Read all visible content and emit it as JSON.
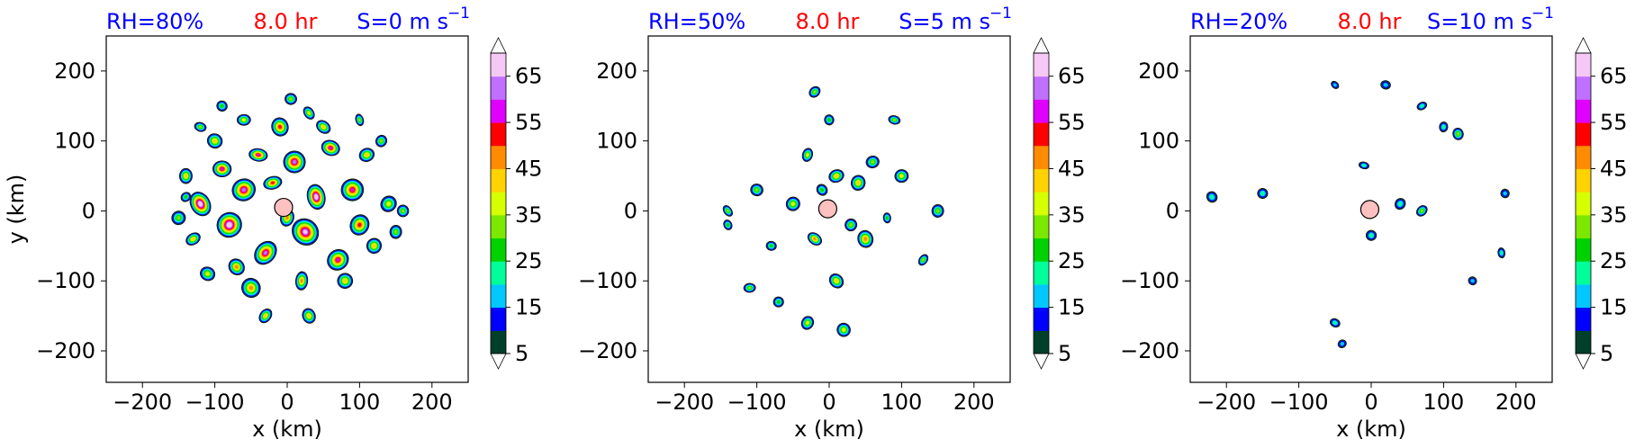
{
  "figure": {
    "colors": {
      "title_left": "#0000ff",
      "title_center": "#ff0000",
      "title_right": "#0000ff",
      "axis": "#000000",
      "eye_fill": "#ffc0c0"
    }
  },
  "chart_data": [
    {
      "type": "heatmap",
      "title_left": "RH=80%",
      "title_center": "8.0 hr",
      "title_right": "S=0 m s",
      "title_right_sup": "−1",
      "xlabel": "x (km)",
      "ylabel": "y (km)",
      "xlim": [
        -250,
        250
      ],
      "ylim": [
        -245,
        250
      ],
      "xticks": [
        -200,
        -100,
        0,
        100,
        200
      ],
      "yticks": [
        -200,
        -100,
        0,
        100,
        200
      ],
      "xtick_labels": [
        "−200",
        "−100",
        "0",
        "100",
        "200"
      ],
      "ytick_labels": [
        "−200",
        "−100",
        "0",
        "100",
        "200"
      ],
      "eye_center": [
        -5,
        5
      ],
      "cells": [
        [
          -120,
          10,
          14,
          70
        ],
        [
          -90,
          60,
          10,
          55
        ],
        [
          -80,
          -20,
          14,
          70
        ],
        [
          -60,
          30,
          12,
          60
        ],
        [
          -40,
          80,
          10,
          55
        ],
        [
          -30,
          -60,
          14,
          60
        ],
        [
          -10,
          120,
          10,
          50
        ],
        [
          10,
          70,
          12,
          60
        ],
        [
          25,
          -30,
          14,
          65
        ],
        [
          40,
          20,
          14,
          70
        ],
        [
          60,
          90,
          10,
          55
        ],
        [
          70,
          -70,
          12,
          55
        ],
        [
          90,
          30,
          12,
          55
        ],
        [
          100,
          -20,
          10,
          50
        ],
        [
          -130,
          -40,
          8,
          40
        ],
        [
          -140,
          50,
          8,
          40
        ],
        [
          -100,
          100,
          8,
          40
        ],
        [
          -50,
          -110,
          10,
          45
        ],
        [
          20,
          -100,
          10,
          45
        ],
        [
          50,
          120,
          8,
          40
        ],
        [
          110,
          80,
          8,
          40
        ],
        [
          120,
          -50,
          8,
          40
        ],
        [
          140,
          10,
          8,
          35
        ],
        [
          -20,
          40,
          10,
          50
        ],
        [
          0,
          -10,
          9,
          45
        ],
        [
          -70,
          -80,
          9,
          45
        ],
        [
          80,
          -100,
          8,
          40
        ],
        [
          -110,
          -90,
          7,
          35
        ],
        [
          30,
          140,
          7,
          35
        ],
        [
          -60,
          130,
          7,
          35
        ],
        [
          130,
          100,
          6,
          30
        ],
        [
          -150,
          -10,
          7,
          30
        ],
        [
          150,
          -30,
          6,
          30
        ],
        [
          -30,
          -150,
          8,
          40
        ],
        [
          30,
          -150,
          8,
          40
        ],
        [
          5,
          160,
          6,
          30
        ],
        [
          -90,
          150,
          5,
          25
        ],
        [
          100,
          130,
          6,
          30
        ],
        [
          -120,
          120,
          6,
          30
        ],
        [
          -140,
          20,
          5,
          25
        ],
        [
          160,
          0,
          6,
          30
        ]
      ]
    },
    {
      "type": "heatmap",
      "title_left": "RH=50%",
      "title_center": "8.0 hr",
      "title_right": "S=5 m s",
      "title_right_sup": "−1",
      "xlabel": "x (km)",
      "ylabel": "",
      "xlim": [
        -250,
        250
      ],
      "ylim": [
        -245,
        250
      ],
      "xticks": [
        -200,
        -100,
        0,
        100,
        200
      ],
      "yticks": [
        -200,
        -100,
        0,
        100,
        200
      ],
      "xtick_labels": [
        "−200",
        "−100",
        "0",
        "100",
        "200"
      ],
      "ytick_labels": [
        "−200",
        "−100",
        "0",
        "100",
        "200"
      ],
      "eye_center": [
        -2,
        3
      ],
      "cells": [
        [
          -20,
          -40,
          8,
          45
        ],
        [
          10,
          50,
          8,
          40
        ],
        [
          40,
          40,
          8,
          40
        ],
        [
          -50,
          10,
          7,
          35
        ],
        [
          50,
          -40,
          8,
          45
        ],
        [
          -30,
          80,
          7,
          35
        ],
        [
          10,
          -100,
          8,
          40
        ],
        [
          100,
          50,
          7,
          35
        ],
        [
          -100,
          30,
          6,
          30
        ],
        [
          -140,
          0,
          6,
          30
        ],
        [
          -110,
          -110,
          6,
          30
        ],
        [
          -30,
          -160,
          7,
          35
        ],
        [
          20,
          -170,
          7,
          35
        ],
        [
          150,
          0,
          6,
          30
        ],
        [
          130,
          -70,
          6,
          30
        ],
        [
          -140,
          -20,
          5,
          25
        ],
        [
          -80,
          -50,
          5,
          25
        ],
        [
          -70,
          -130,
          5,
          25
        ],
        [
          60,
          70,
          6,
          30
        ],
        [
          90,
          130,
          6,
          30
        ],
        [
          -20,
          170,
          6,
          30
        ],
        [
          0,
          130,
          5,
          25
        ],
        [
          30,
          -20,
          6,
          30
        ],
        [
          -10,
          30,
          5,
          25
        ],
        [
          80,
          -10,
          5,
          25
        ]
      ]
    },
    {
      "type": "heatmap",
      "title_left": "RH=20%",
      "title_center": "8.0 hr",
      "title_right": "S=10 m s",
      "title_right_sup": "−1",
      "xlabel": "x (km)",
      "ylabel": "",
      "xlim": [
        -250,
        250
      ],
      "ylim": [
        -245,
        250
      ],
      "xticks": [
        -200,
        -100,
        0,
        100,
        200
      ],
      "yticks": [
        -200,
        -100,
        0,
        100,
        200
      ],
      "xtick_labels": [
        "−200",
        "−100",
        "0",
        "100",
        "200"
      ],
      "ytick_labels": [
        "−200",
        "−100",
        "0",
        "100",
        "200"
      ],
      "eye_center": [
        -2,
        2
      ],
      "cells": [
        [
          -10,
          65,
          5,
          22
        ],
        [
          70,
          0,
          6,
          30
        ],
        [
          120,
          110,
          6,
          30
        ],
        [
          -150,
          25,
          5,
          22
        ],
        [
          -220,
          20,
          5,
          22
        ],
        [
          180,
          -60,
          5,
          22
        ],
        [
          -50,
          -160,
          5,
          20
        ],
        [
          -40,
          -190,
          4,
          18
        ],
        [
          0,
          -35,
          5,
          22
        ],
        [
          40,
          10,
          5,
          22
        ],
        [
          70,
          150,
          5,
          22
        ],
        [
          100,
          120,
          5,
          22
        ],
        [
          140,
          -100,
          4,
          18
        ],
        [
          185,
          25,
          4,
          18
        ],
        [
          20,
          180,
          4,
          18
        ],
        [
          -50,
          180,
          4,
          18
        ]
      ]
    }
  ],
  "colorbar": {
    "levels": [
      5,
      10,
      15,
      20,
      25,
      30,
      35,
      40,
      45,
      50,
      55,
      60,
      65,
      70
    ],
    "tick_labels": [
      "5",
      "15",
      "25",
      "35",
      "45",
      "55",
      "65"
    ],
    "colors": [
      "#00402a",
      "#0000ff",
      "#00c8ff",
      "#00ff9a",
      "#00d200",
      "#7ce800",
      "#d6ff00",
      "#ffd200",
      "#ff8c00",
      "#ff0000",
      "#e000ff",
      "#c070ff",
      "#f5c8f5"
    ],
    "extend": "both"
  }
}
